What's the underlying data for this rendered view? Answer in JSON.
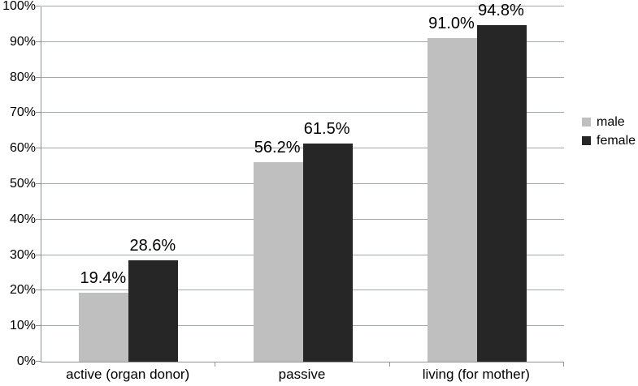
{
  "chart_data": {
    "type": "bar",
    "title": "",
    "xlabel": "",
    "ylabel": "",
    "categories": [
      "active (organ donor)",
      "passive",
      "living (for mother)"
    ],
    "series": [
      {
        "name": "male",
        "color": "#bfbfbf",
        "values": [
          19.4,
          56.2,
          91.0
        ],
        "labels": [
          "19.4%",
          "56.2%",
          "91.0%"
        ]
      },
      {
        "name": "female",
        "color": "#262626",
        "values": [
          28.6,
          61.5,
          94.8
        ],
        "labels": [
          "28.6%",
          "61.5%",
          "94.8%"
        ]
      }
    ],
    "ylim": [
      0,
      100
    ],
    "yticks": [
      {
        "value": 0,
        "label": "0%"
      },
      {
        "value": 10,
        "label": "10%"
      },
      {
        "value": 20,
        "label": "20%"
      },
      {
        "value": 30,
        "label": "30%"
      },
      {
        "value": 40,
        "label": "40%"
      },
      {
        "value": 50,
        "label": "50%"
      },
      {
        "value": 60,
        "label": "60%"
      },
      {
        "value": 70,
        "label": "70%"
      },
      {
        "value": 80,
        "label": "80%"
      },
      {
        "value": 90,
        "label": "90%"
      },
      {
        "value": 100,
        "label": "100%"
      }
    ],
    "grid": true,
    "legend": {
      "position": "right",
      "entries": [
        {
          "label": "male",
          "color": "#bfbfbf"
        },
        {
          "label": "female",
          "color": "#262626"
        }
      ]
    },
    "colors": {
      "background": "#ffffff",
      "gridline": "#a3a8a8",
      "axis": "#8f9494",
      "text": "#000000"
    }
  }
}
